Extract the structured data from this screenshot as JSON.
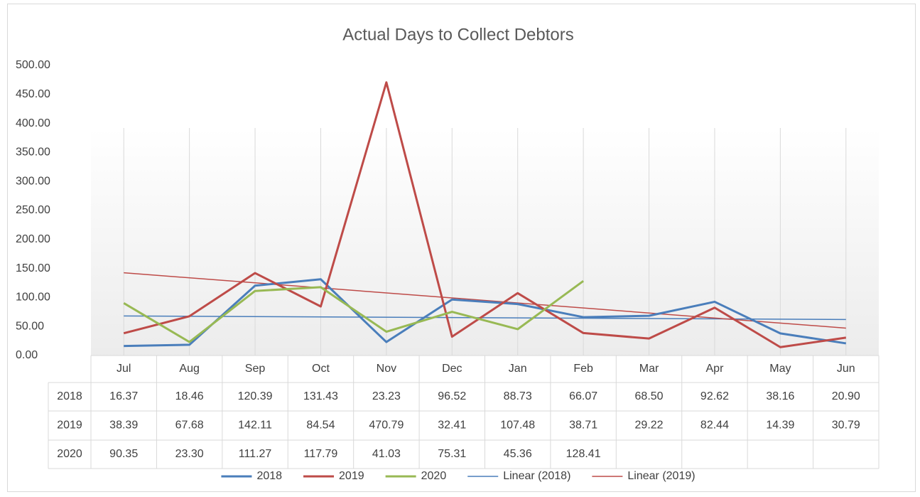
{
  "chart_data": {
    "type": "line",
    "title": "Actual Days to Collect Debtors",
    "categories": [
      "Jul",
      "Aug",
      "Sep",
      "Oct",
      "Nov",
      "Dec",
      "Jan",
      "Feb",
      "Mar",
      "Apr",
      "May",
      "Jun"
    ],
    "series": [
      {
        "name": "2018",
        "color": "#4a7ebb",
        "values": [
          16.37,
          18.46,
          120.39,
          131.43,
          23.23,
          96.52,
          88.73,
          66.07,
          68.5,
          92.62,
          38.16,
          20.9
        ],
        "value_labels": [
          "16.37",
          "18.46",
          "120.39",
          "131.43",
          "23.23",
          "96.52",
          "88.73",
          "66.07",
          "68.50",
          "92.62",
          "38.16",
          "20.90"
        ]
      },
      {
        "name": "2019",
        "color": "#be4b48",
        "values": [
          38.39,
          67.68,
          142.11,
          84.54,
          470.79,
          32.41,
          107.48,
          38.71,
          29.22,
          82.44,
          14.39,
          30.79
        ],
        "value_labels": [
          "38.39",
          "67.68",
          "142.11",
          "84.54",
          "470.79",
          "32.41",
          "107.48",
          "38.71",
          "29.22",
          "82.44",
          "14.39",
          "30.79"
        ]
      },
      {
        "name": "2020",
        "color": "#98b954",
        "values": [
          90.35,
          23.3,
          111.27,
          117.79,
          41.03,
          75.31,
          45.36,
          128.41,
          null,
          null,
          null,
          null
        ],
        "value_labels": [
          "90.35",
          "23.30",
          "111.27",
          "117.79",
          "41.03",
          "75.31",
          "45.36",
          "128.41",
          null,
          null,
          null,
          null
        ]
      }
    ],
    "trendlines": [
      {
        "name": "Linear (2018)",
        "series": 0,
        "color": "#4a7ebb"
      },
      {
        "name": "Linear (2019)",
        "series": 1,
        "color": "#be4b48"
      }
    ],
    "ylim": [
      0,
      500
    ],
    "yticks": [
      {
        "value": 0,
        "label": "0.00"
      },
      {
        "value": 50,
        "label": "50.00"
      },
      {
        "value": 100,
        "label": "100.00"
      },
      {
        "value": 150,
        "label": "150.00"
      },
      {
        "value": 200,
        "label": "200.00"
      },
      {
        "value": 250,
        "label": "250.00"
      },
      {
        "value": 300,
        "label": "300.00"
      },
      {
        "value": 350,
        "label": "350.00"
      },
      {
        "value": 400,
        "label": "400.00"
      },
      {
        "value": 450,
        "label": "450.00"
      },
      {
        "value": 500,
        "label": "500.00"
      }
    ],
    "legend": "bottom"
  }
}
